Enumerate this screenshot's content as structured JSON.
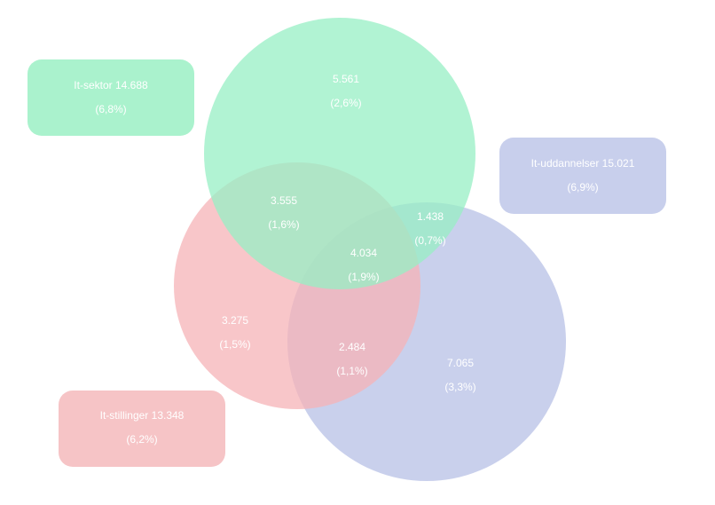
{
  "sets": [
    {
      "name": "It-sektor",
      "count": "14.688",
      "share": "(6,8%)"
    },
    {
      "name": "It-uddannelser",
      "count": "15.021",
      "share": "(6,9%)"
    },
    {
      "name": "It-stillinger",
      "count": "13.348",
      "share": "(6,2%)"
    }
  ],
  "regions": [
    {
      "value": "5.561",
      "share": "(2,6%)"
    },
    {
      "value": "3.555",
      "share": "(1,6%)"
    },
    {
      "value": "1.438",
      "share": "(0,7%)"
    },
    {
      "value": "4.034",
      "share": "(1,9%)"
    },
    {
      "value": "3.275",
      "share": "(1,5%)"
    },
    {
      "value": "2.484",
      "share": "(1,1%)"
    },
    {
      "value": "7.065",
      "share": "(3,3%)"
    }
  ]
}
